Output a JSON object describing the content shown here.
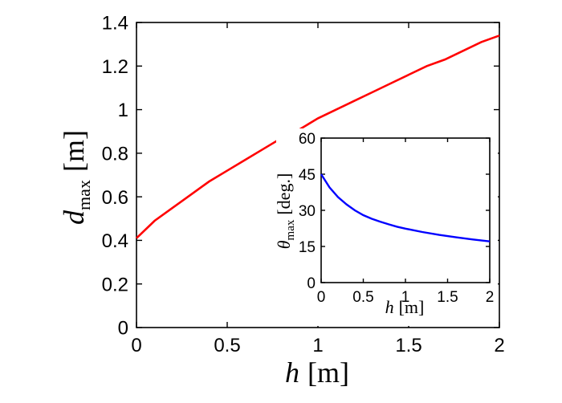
{
  "chart_data": [
    {
      "type": "line",
      "name": "main",
      "xlabel_var": "h",
      "xlabel_unit": "[m]",
      "ylabel_var": "d",
      "ylabel_sub": "max",
      "ylabel_unit": "[m]",
      "xlim": [
        0,
        2
      ],
      "ylim": [
        0,
        1.4
      ],
      "xticks": [
        0,
        0.5,
        1,
        1.5,
        2
      ],
      "xtick_labels": [
        "0",
        "0.5",
        "1",
        "1.5",
        "2"
      ],
      "yticks": [
        0,
        0.2,
        0.4,
        0.6,
        0.8,
        1.0,
        1.2,
        1.4
      ],
      "ytick_labels": [
        "0",
        "0.2",
        "0.4",
        "0.6",
        "0.8",
        "1",
        "1.2",
        "1.4"
      ],
      "series": [
        {
          "name": "d_max",
          "color": "#ff0000",
          "x": [
            0,
            0.1,
            0.2,
            0.3,
            0.4,
            0.5,
            0.6,
            0.7,
            0.8,
            0.9,
            1.0,
            1.1,
            1.2,
            1.3,
            1.4,
            1.5,
            1.6,
            1.7,
            1.8,
            1.9,
            2.0
          ],
          "y": [
            0.41,
            0.49,
            0.55,
            0.61,
            0.67,
            0.72,
            0.77,
            0.82,
            0.87,
            0.91,
            0.96,
            1.0,
            1.04,
            1.08,
            1.12,
            1.16,
            1.2,
            1.23,
            1.27,
            1.31,
            1.34
          ]
        }
      ]
    },
    {
      "type": "line",
      "name": "inset",
      "xlabel_var": "h",
      "xlabel_unit": "[m]",
      "ylabel_var": "θ",
      "ylabel_sub": "max",
      "ylabel_unit": "[deg.]",
      "xlim": [
        0,
        2
      ],
      "ylim": [
        0,
        60
      ],
      "xticks": [
        0,
        0.5,
        1,
        1.5,
        2
      ],
      "xtick_labels": [
        "0",
        "0.5",
        "1",
        "1.5",
        "2"
      ],
      "yticks": [
        0,
        15,
        30,
        45,
        60
      ],
      "ytick_labels": [
        "0",
        "15",
        "30",
        "45",
        "60"
      ],
      "series": [
        {
          "name": "theta_max",
          "color": "#0000ff",
          "x": [
            0,
            0.1,
            0.2,
            0.3,
            0.4,
            0.5,
            0.6,
            0.7,
            0.8,
            0.9,
            1.0,
            1.2,
            1.4,
            1.6,
            1.8,
            2.0
          ],
          "y": [
            45,
            39.5,
            35.5,
            32.5,
            30.0,
            28.0,
            26.5,
            25.3,
            24.2,
            23.2,
            22.4,
            21.0,
            19.8,
            18.8,
            17.9,
            17.1
          ]
        }
      ]
    }
  ]
}
